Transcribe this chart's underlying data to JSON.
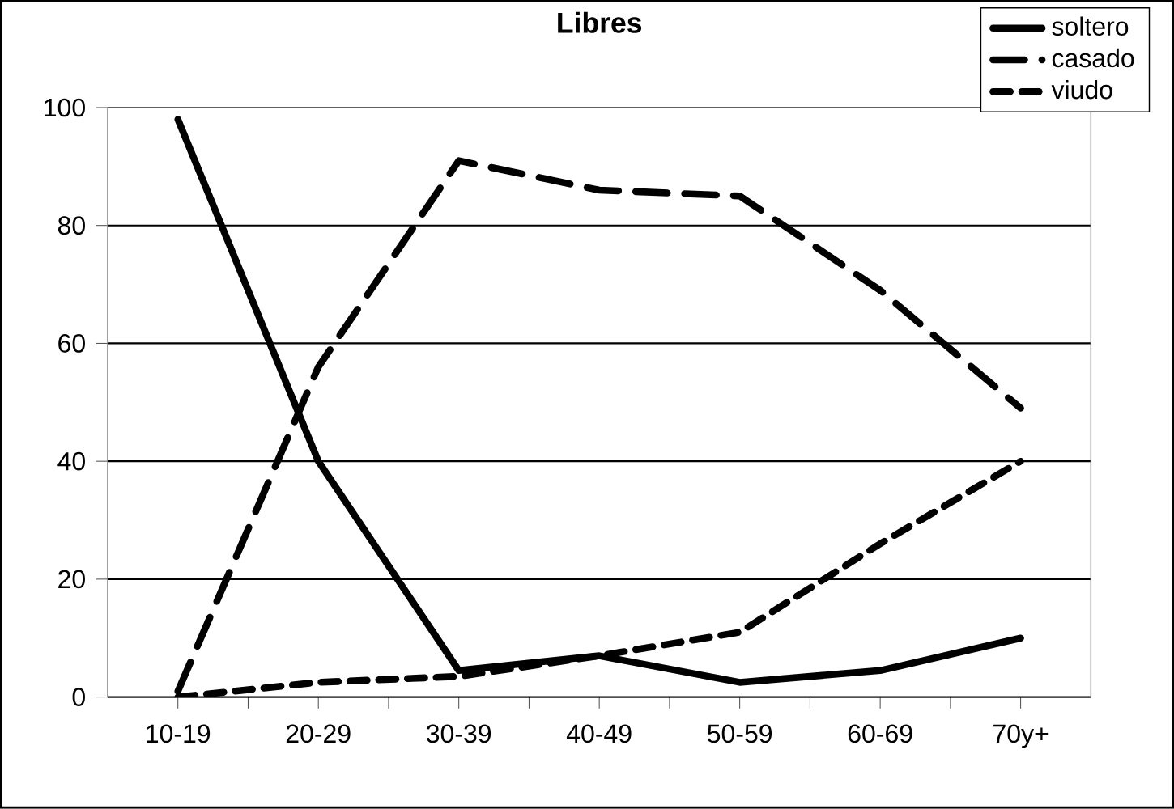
{
  "chart_data": {
    "type": "line",
    "title": "Libres",
    "categories": [
      "10-19",
      "20-29",
      "30-39",
      "40-49",
      "50-59",
      "60-69",
      "70y+"
    ],
    "series": [
      {
        "name": "soltero",
        "color": "#000000",
        "line_style": "solid",
        "values": [
          98,
          40,
          4.5,
          7,
          2.5,
          4.5,
          10
        ]
      },
      {
        "name": "casado",
        "color": "#000000",
        "line_style": "dashed",
        "values": [
          1,
          56,
          91,
          86,
          85,
          69,
          49
        ]
      },
      {
        "name": "viudo",
        "color": "#000000",
        "line_style": "dotted",
        "values": [
          0,
          2.5,
          3.5,
          7,
          11,
          26,
          40
        ]
      }
    ],
    "ylim": [
      0,
      100
    ],
    "yticks": [
      0,
      20,
      40,
      60,
      80,
      100
    ],
    "grid": "y",
    "legend": "top right",
    "marker": "none"
  }
}
